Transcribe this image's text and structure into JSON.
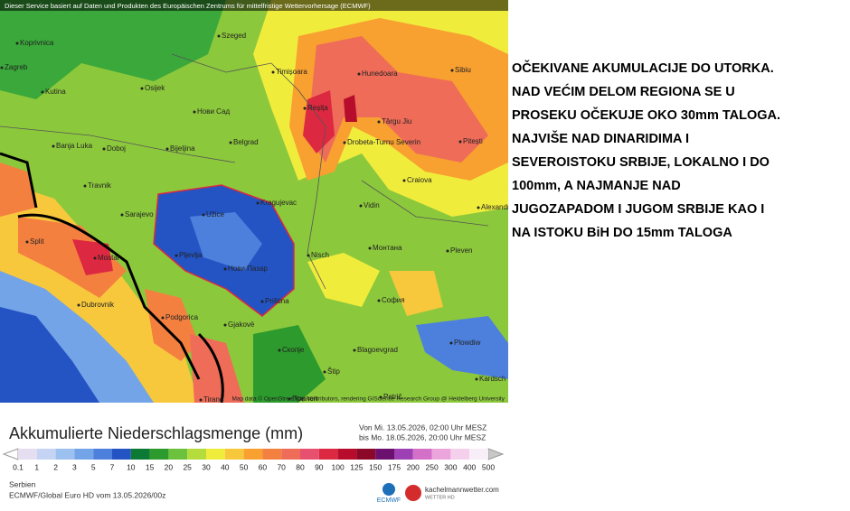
{
  "header": {
    "notice": "Dieser Service basiert auf Daten und Produkten des Europäischen Zentrums für mittelfristige Wettervorhersage (ECMWF)"
  },
  "map": {
    "attribution": "Map data © OpenStreetMap contributors, rendering GIScience Research Group @ Heidelberg University",
    "cities": [
      "Koprivnica",
      "Szeged",
      "Zagreb",
      "Osijek",
      "Timișoara",
      "Hunedoara",
      "Sibiu",
      "Kutina",
      "Нови Сад",
      "Reșița",
      "Târgu Jiu",
      "Banja Luka",
      "Doboj",
      "Bijeljina",
      "Belgrad",
      "Drobeta-Turnu Severin",
      "Pitești",
      "Travnik",
      "Craiova",
      "Sarajevo",
      "Užice",
      "Kragujevac",
      "Vidin",
      "Alexandria",
      "Split",
      "Mostar",
      "Pljevlja",
      "Нови Пазар",
      "Nisch",
      "Монтана",
      "Pleven",
      "Dubrovnik",
      "Podgorica",
      "Priština",
      "София",
      "Gjakovë",
      "Скопје",
      "Blagoevgrad",
      "Plowdiw",
      "Štip",
      "Tirane",
      "Прилеп",
      "Petrič",
      "Kardsch"
    ]
  },
  "commentary": {
    "lines": [
      "OČEKIVANE AKUMULACIJE DO UTORKA.",
      "NAD VEĆIM DELOM REGIONA SE U",
      "PROSEKU OČEKUJE OKO 30mm TALOGA.",
      "NAJVIŠE NAD DINARIDIMA I",
      "SEVEROISTOKU SRBIJE, LOKALNO I DO",
      "100mm, A NAJMANJE NAD",
      "JUGOZAPADOM I JUGOM SRBIJE KAO I",
      "NA ISTOKU BiH DO 15mm TALOGA"
    ]
  },
  "legend": {
    "title": "Akkumulierte Niederschlagsmenge (mm)",
    "from": "Von Mi. 13.05.2026, 02:00 Uhr MESZ",
    "to": "bis Mo. 18.05.2026, 20:00 Uhr MESZ",
    "ticks": [
      0.1,
      1,
      2,
      3,
      5,
      7,
      10,
      15,
      20,
      25,
      30,
      40,
      50,
      60,
      70,
      80,
      90,
      100,
      125,
      150,
      175,
      200,
      250,
      300,
      400,
      500
    ],
    "colors": [
      "#e4def0",
      "#c4d4f2",
      "#9cc0f0",
      "#74a4e8",
      "#4c80dc",
      "#2454c4",
      "#0c7a34",
      "#2c9a2c",
      "#6cc23c",
      "#b4dc3c",
      "#f0ec3c",
      "#f8c83c",
      "#f8a030",
      "#f48040",
      "#ee6c58",
      "#e85070",
      "#dc2840",
      "#b80c2c",
      "#8c0828",
      "#6c1070",
      "#9c40b4",
      "#d470c8",
      "#eca4dc",
      "#f4d0ec",
      "#f8eef8"
    ]
  },
  "footer": {
    "region": "Serbien",
    "model": "ECMWF/Global Euro HD vom  13.05.2026/00z",
    "ecmwf": "ECMWF",
    "site": "kachelmannwetter.com",
    "site_sub": "WETTER HD"
  }
}
